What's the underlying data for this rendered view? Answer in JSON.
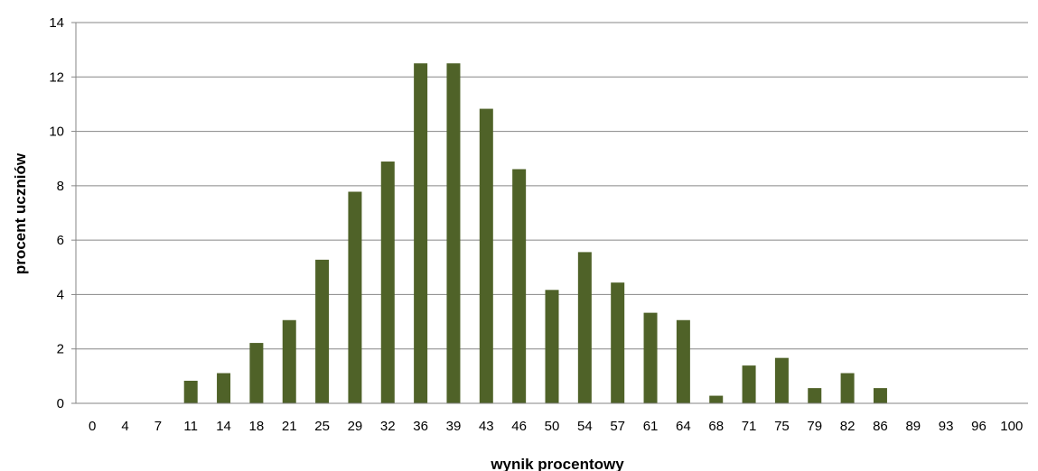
{
  "chart_data": {
    "type": "bar",
    "title": "",
    "xlabel": "wynik procentowy",
    "ylabel": "procent uczniów",
    "categories": [
      "0",
      "4",
      "7",
      "11",
      "14",
      "18",
      "21",
      "25",
      "29",
      "32",
      "36",
      "39",
      "43",
      "46",
      "50",
      "54",
      "57",
      "61",
      "64",
      "68",
      "71",
      "75",
      "79",
      "82",
      "86",
      "89",
      "93",
      "96",
      "100"
    ],
    "values": [
      0,
      0,
      0,
      0.83,
      1.11,
      2.22,
      3.06,
      5.28,
      7.78,
      8.89,
      12.5,
      12.5,
      10.83,
      8.61,
      4.17,
      5.56,
      4.44,
      3.33,
      3.06,
      0.28,
      1.39,
      1.67,
      0.56,
      1.11,
      0.56,
      0,
      0,
      0,
      0
    ],
    "ylim": [
      0,
      14
    ],
    "yticks": [
      0,
      2,
      4,
      6,
      8,
      10,
      12,
      14
    ],
    "grid": true,
    "legend": "none",
    "bar_color": "#4f6228",
    "grid_color": "#868686",
    "axis_color": "#868686"
  }
}
